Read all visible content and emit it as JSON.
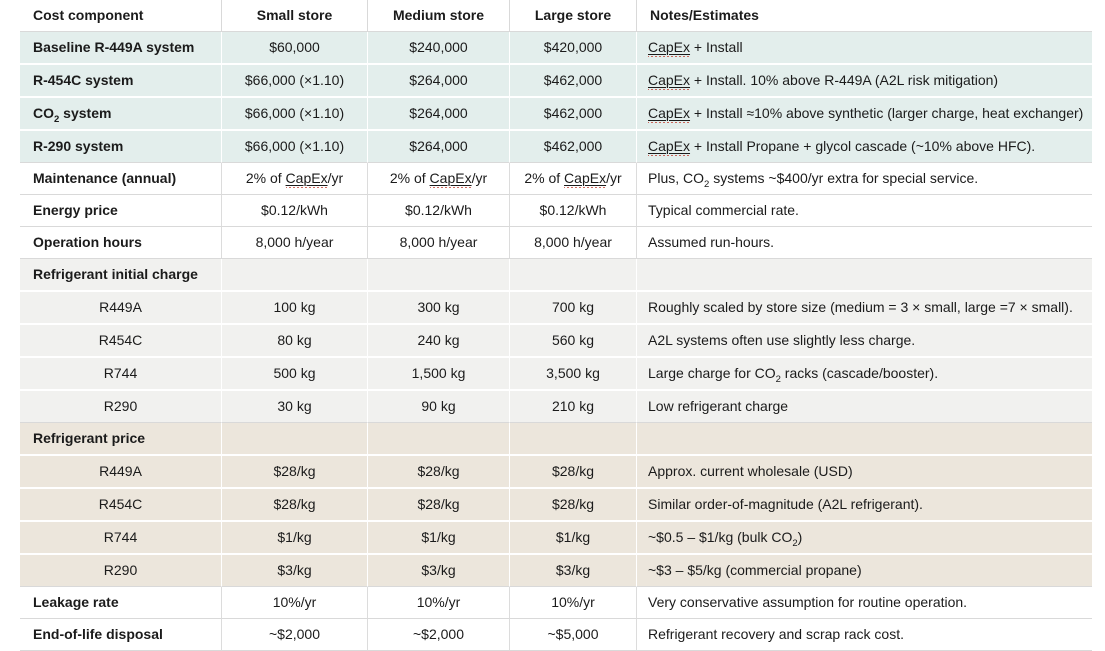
{
  "meta": {
    "text_color": "#1b1b1b",
    "grid_color": "#d9d9d9",
    "grid_soft_color": "#dcdcdc",
    "squiggle_color": "#c0392b",
    "shades": {
      "teal": "#e3eeec",
      "gray": "#f1f1ef",
      "tan": "#ece6dc",
      "white": "#ffffff"
    }
  },
  "table": {
    "columns": [
      {
        "label": "Cost component",
        "align": "left"
      },
      {
        "label": "Small store",
        "align": "center"
      },
      {
        "label": "Medium store",
        "align": "center"
      },
      {
        "label": "Large store",
        "align": "center"
      },
      {
        "label": "Notes/Estimates",
        "align": "left"
      }
    ],
    "rows": [
      {
        "shade": "teal",
        "bold": true,
        "label": "Baseline R-449A system",
        "cells": [
          "$60,000",
          "$240,000",
          "$420,000"
        ],
        "note": [
          {
            "t": "CapEx",
            "sc": true
          },
          {
            "t": " + Install"
          }
        ]
      },
      {
        "shade": "teal",
        "bold": true,
        "label": "R-454C system",
        "cells": [
          "$66,000 (×1.10)",
          "$264,000",
          "$462,000"
        ],
        "note": [
          {
            "t": "CapEx",
            "sc": true
          },
          {
            "t": " + Install. 10% above R-449A (A2L risk mitigation)"
          }
        ]
      },
      {
        "shade": "teal",
        "bold": true,
        "label": [
          {
            "t": "CO"
          },
          {
            "t": "2",
            "sub": true
          },
          {
            "t": " system"
          }
        ],
        "cells": [
          "$66,000 (×1.10)",
          "$264,000",
          "$462,000"
        ],
        "note": [
          {
            "t": "CapEx",
            "sc": true
          },
          {
            "t": " + Install ≈10% above synthetic (larger charge, heat exchanger)"
          }
        ]
      },
      {
        "shade": "teal",
        "bold": true,
        "label": "R-290 system",
        "cells": [
          "$66,000 (×1.10)",
          "$264,000",
          "$462,000"
        ],
        "note": [
          {
            "t": "CapEx",
            "sc": true
          },
          {
            "t": " + Install Propane + glycol cascade (~10% above HFC)."
          }
        ]
      },
      {
        "shade": "white",
        "bold": true,
        "label": "Maintenance (annual)",
        "cells": [
          [
            {
              "t": "2% of "
            },
            {
              "t": "CapEx",
              "sc": true
            },
            {
              "t": "/yr"
            }
          ],
          [
            {
              "t": "2% of "
            },
            {
              "t": "CapEx",
              "sc": true
            },
            {
              "t": "/yr"
            }
          ],
          [
            {
              "t": "2% of "
            },
            {
              "t": "CapEx",
              "sc": true
            },
            {
              "t": "/yr"
            }
          ]
        ],
        "note": [
          {
            "t": "Plus, CO"
          },
          {
            "t": "2",
            "sub": true
          },
          {
            "t": " systems ~$400/yr extra for special service."
          }
        ]
      },
      {
        "shade": "white",
        "bold": true,
        "label": "Energy price",
        "cells": [
          "$0.12/kWh",
          "$0.12/kWh",
          "$0.12/kWh"
        ],
        "note": "Typical commercial rate."
      },
      {
        "shade": "white",
        "bold": true,
        "label": "Operation hours",
        "cells": [
          "8,000 h/year",
          "8,000 h/year",
          "8,000 h/year"
        ],
        "note": "Assumed run-hours."
      },
      {
        "shade": "gray",
        "bold": true,
        "label": "Refrigerant initial charge",
        "cells": [
          "",
          "",
          ""
        ],
        "note": ""
      },
      {
        "shade": "gray",
        "indent": true,
        "label": "R449A",
        "cells": [
          "100 kg",
          "300 kg",
          "700 kg"
        ],
        "note": "Roughly scaled by store size (medium = 3 × small, large =7 × small)."
      },
      {
        "shade": "gray",
        "indent": true,
        "label": "R454C",
        "cells": [
          "80 kg",
          "240 kg",
          "560 kg"
        ],
        "note": "A2L systems often use slightly less charge."
      },
      {
        "shade": "gray",
        "indent": true,
        "label": "R744",
        "cells": [
          "500 kg",
          "1,500 kg",
          "3,500 kg"
        ],
        "note": [
          {
            "t": "Large charge for CO"
          },
          {
            "t": "2",
            "sub": true
          },
          {
            "t": " racks (cascade/booster)."
          }
        ]
      },
      {
        "shade": "gray",
        "indent": true,
        "label": "R290",
        "cells": [
          "30 kg",
          "90 kg",
          "210 kg"
        ],
        "note": "Low refrigerant charge"
      },
      {
        "shade": "tan",
        "bold": true,
        "label": "Refrigerant price",
        "cells": [
          "",
          "",
          ""
        ],
        "note": ""
      },
      {
        "shade": "tan",
        "indent": true,
        "label": "R449A",
        "cells": [
          "$28/kg",
          "$28/kg",
          "$28/kg"
        ],
        "note": "Approx. current wholesale (USD)"
      },
      {
        "shade": "tan",
        "indent": true,
        "label": "R454C",
        "cells": [
          "$28/kg",
          "$28/kg",
          "$28/kg"
        ],
        "note": "Similar order-of-magnitude (A2L refrigerant)."
      },
      {
        "shade": "tan",
        "indent": true,
        "label": "R744",
        "cells": [
          "$1/kg",
          "$1/kg",
          "$1/kg"
        ],
        "note": [
          {
            "t": "~$0.5 – $1/kg (bulk CO"
          },
          {
            "t": "2",
            "sub": true
          },
          {
            "t": ")"
          }
        ]
      },
      {
        "shade": "tan",
        "indent": true,
        "label": "R290",
        "cells": [
          "$3/kg",
          "$3/kg",
          "$3/kg"
        ],
        "note": "~$3 – $5/kg (commercial propane)"
      },
      {
        "shade": "white",
        "bold": true,
        "label": "Leakage rate",
        "cells": [
          "10%/yr",
          "10%/yr",
          "10%/yr"
        ],
        "note": "Very conservative assumption for routine operation."
      },
      {
        "shade": "white",
        "bold": true,
        "label": "End-of-life disposal",
        "cells": [
          "~$2,000",
          "~$2,000",
          "~$5,000"
        ],
        "note": "Refrigerant recovery and scrap rack cost."
      }
    ]
  }
}
